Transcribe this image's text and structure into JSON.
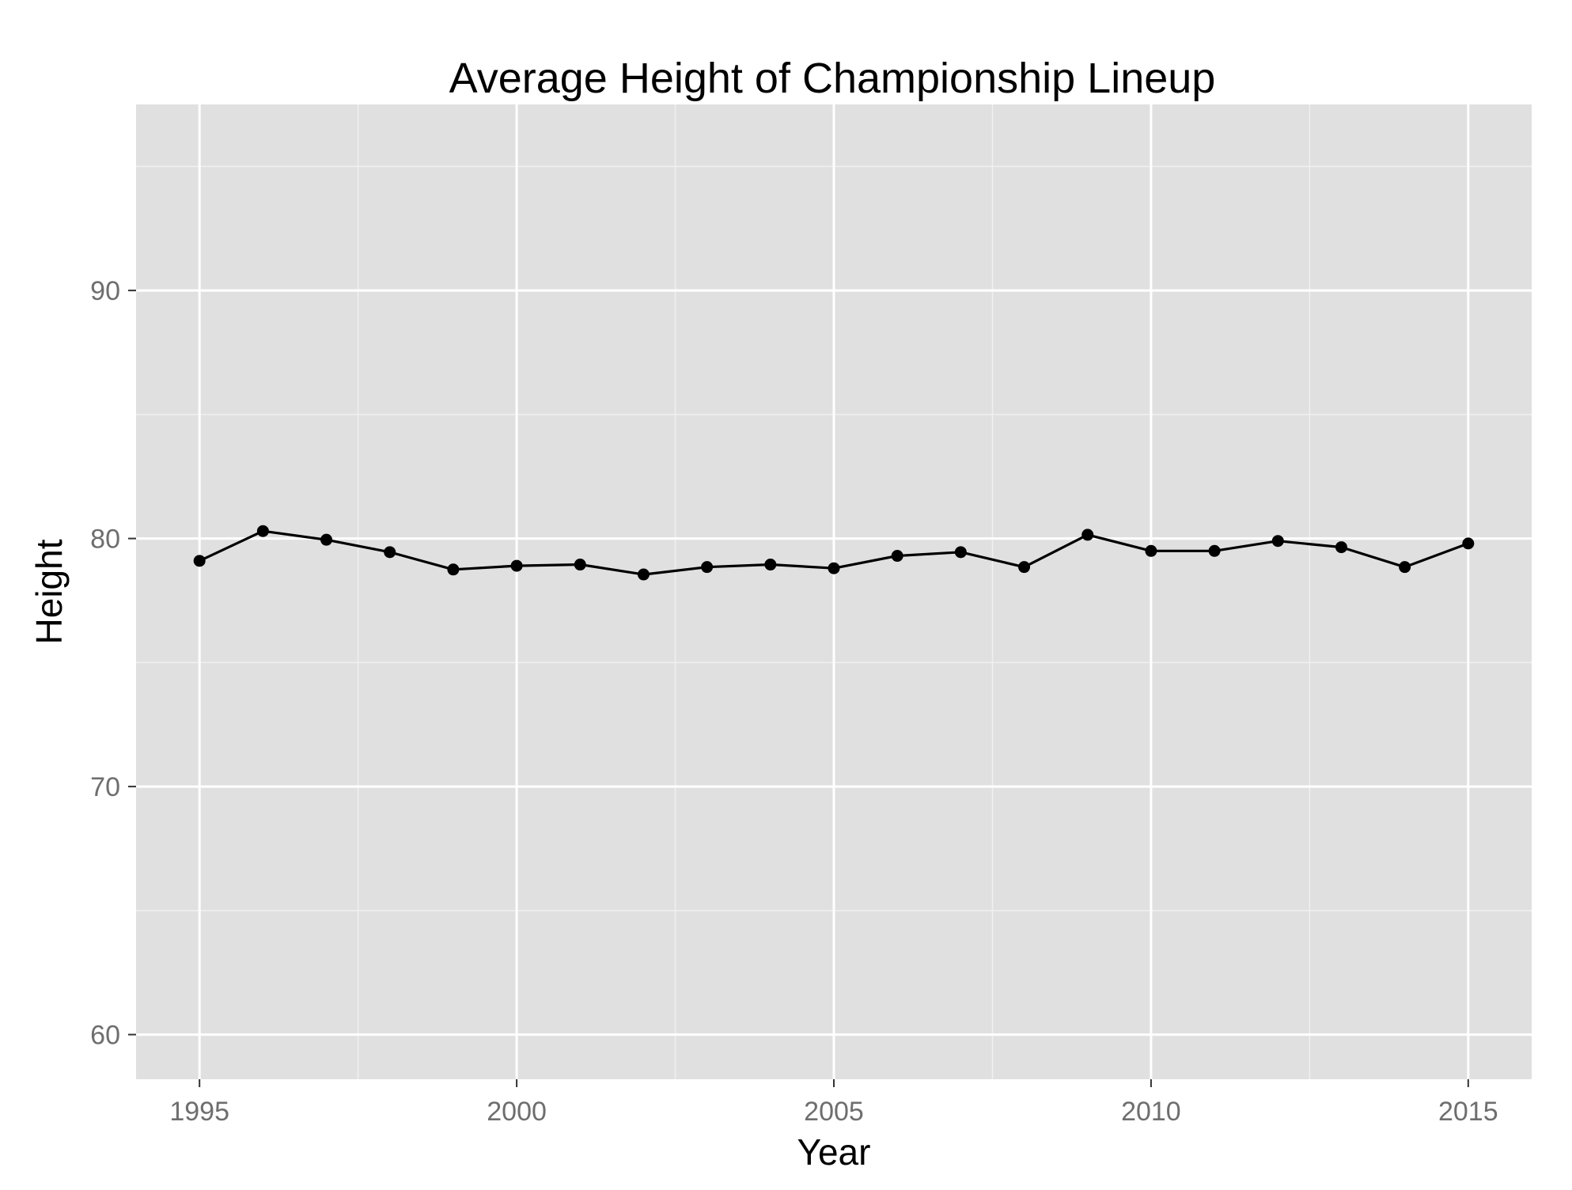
{
  "chart_data": {
    "type": "line",
    "title": "Average Height of Championship Lineup",
    "xlabel": "Year",
    "ylabel": "Height",
    "xlim": [
      1994,
      2016
    ],
    "ylim": [
      58.2,
      97.5
    ],
    "x_ticks": [
      1995,
      2000,
      2005,
      2010,
      2015
    ],
    "y_ticks": [
      60,
      70,
      80,
      90
    ],
    "x_minor": [
      1997.5,
      2002.5,
      2007.5,
      2012.5
    ],
    "y_minor": [
      65,
      75,
      85,
      95
    ],
    "grid": true,
    "legend": "none",
    "colors": {
      "panel": "#e0e0e0",
      "grid_major": "#ffffff",
      "grid_minor": "#f0f0f0",
      "series": "#000000",
      "tick_label": "#6e6e6e"
    },
    "series": [
      {
        "x": [
          1995,
          1996,
          1997,
          1998,
          1999,
          2000,
          2001,
          2002,
          2003,
          2004,
          2005,
          2006,
          2007,
          2008,
          2009,
          2010,
          2011,
          2012,
          2013,
          2014,
          2015
        ],
        "values": [
          79.1,
          80.3,
          79.95,
          79.45,
          78.75,
          78.9,
          78.95,
          78.55,
          78.85,
          78.95,
          78.8,
          79.3,
          79.45,
          78.85,
          80.15,
          79.5,
          79.5,
          79.9,
          79.65,
          78.85,
          79.8
        ]
      }
    ]
  }
}
